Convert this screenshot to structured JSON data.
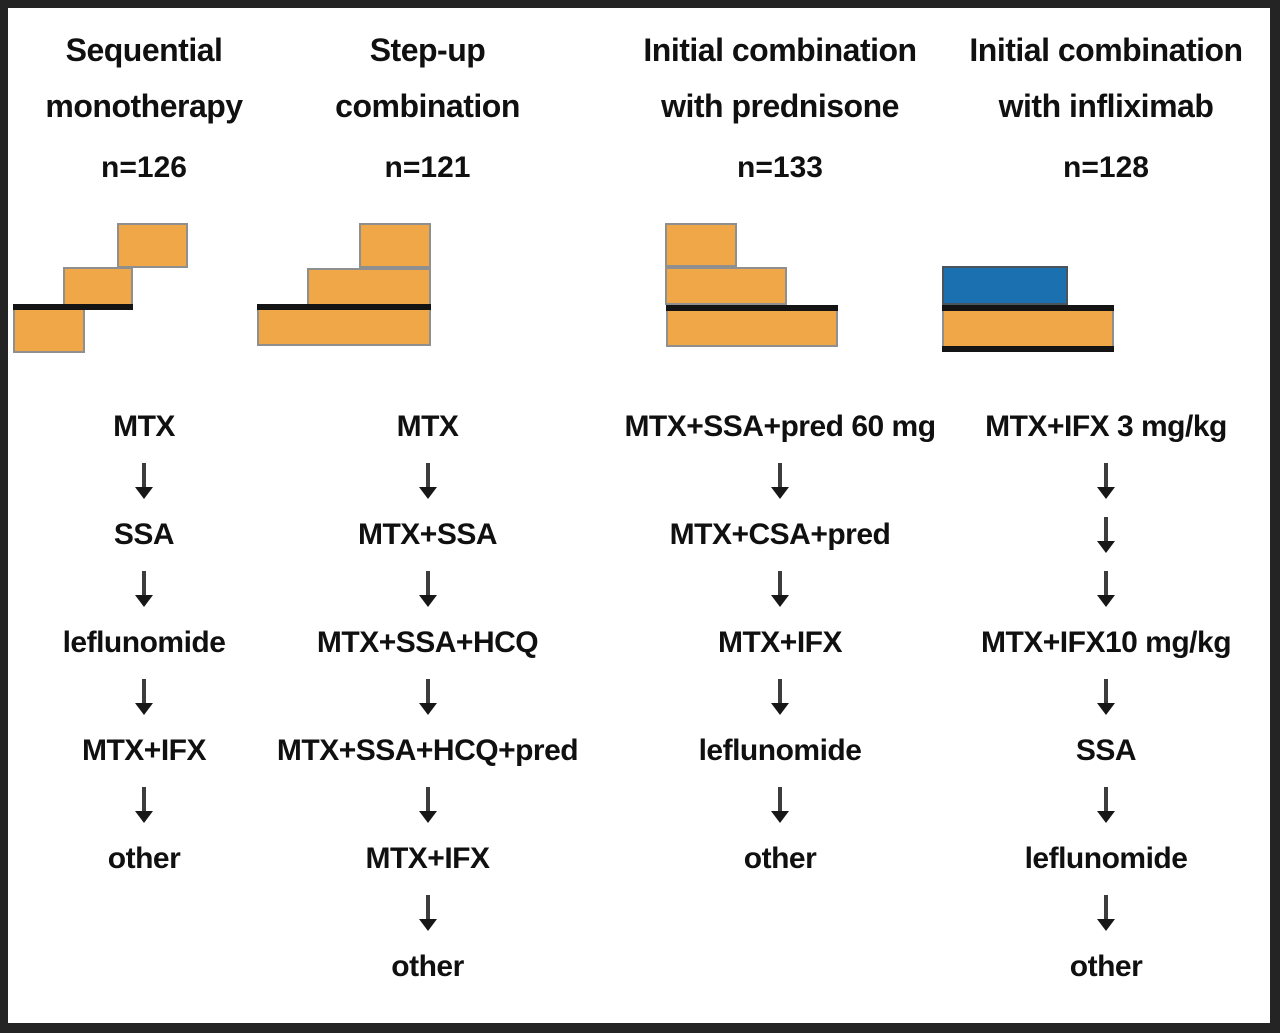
{
  "figure": {
    "description": "Four treatment-strategy flow diagram",
    "colors": {
      "frame": "#242424",
      "stair_fill_orange": "#F0A747",
      "stair_fill_blue": "#1B70AF",
      "stair_border_gray": "#8f8f8f",
      "baseline_black": "#141414",
      "text": "#101010"
    }
  },
  "columns": [
    {
      "id": "sequential-monotherapy",
      "title_line1": "Sequential",
      "title_line2": "monotherapy",
      "n_label": "n=126",
      "steps": [
        "MTX",
        "SSA",
        "leflunomide",
        "MTX+IFX",
        "other"
      ]
    },
    {
      "id": "step-up-combination",
      "title_line1": "Step-up",
      "title_line2": "combination",
      "n_label": "n=121",
      "steps": [
        "MTX",
        "MTX+SSA",
        "MTX+SSA+HCQ",
        "MTX+SSA+HCQ+pred",
        "MTX+IFX",
        "other"
      ]
    },
    {
      "id": "initial-combination-with-prednisone",
      "title_line1": "Initial combination",
      "title_line2": "with prednisone",
      "n_label": "n=133",
      "steps": [
        "MTX+SSA+pred 60 mg",
        "MTX+CSA+pred",
        "MTX+IFX",
        "leflunomide",
        "other"
      ]
    },
    {
      "id": "initial-combination-with-infliximab",
      "title_line1": "Initial combination",
      "title_line2": "with infliximab",
      "n_label": "n=128",
      "steps": [
        "MTX+IFX 3 mg/kg",
        "MTX+IFX10 mg/kg",
        "SSA",
        "leflunomide",
        "other"
      ]
    }
  ]
}
